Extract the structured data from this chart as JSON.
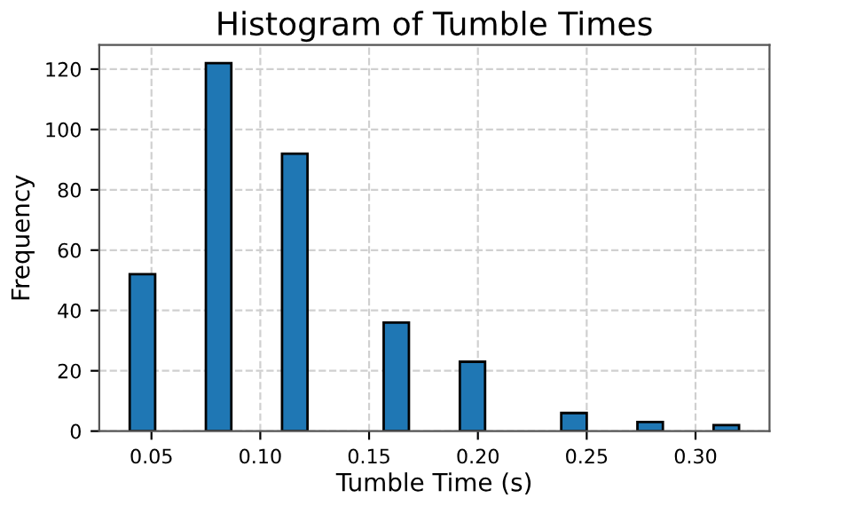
{
  "chart_data": {
    "type": "histogram",
    "title": "Histogram of Tumble Times",
    "xlabel": "Tumble Time (s)",
    "ylabel": "Frequency",
    "bins": [
      0.04,
      0.0517,
      0.0633,
      0.075,
      0.0867,
      0.0983,
      0.11,
      0.1217,
      0.1333,
      0.145,
      0.1567,
      0.1683,
      0.18,
      0.1917,
      0.2033,
      0.215,
      0.2267,
      0.2383,
      0.25,
      0.2617,
      0.2733,
      0.285,
      0.2967,
      0.3083,
      0.32
    ],
    "values": [
      52,
      0,
      0,
      122,
      0,
      0,
      92,
      0,
      0,
      0,
      36,
      0,
      0,
      23,
      0,
      0,
      0,
      6,
      0,
      0,
      3,
      0,
      0,
      2
    ],
    "color": "#1f77b4",
    "xlim": [
      0.026,
      0.334
    ],
    "xticks": [
      {
        "value": 0.05,
        "label": "0.05"
      },
      {
        "value": 0.1,
        "label": "0.10"
      },
      {
        "value": 0.15,
        "label": "0.15"
      },
      {
        "value": 0.2,
        "label": "0.20"
      },
      {
        "value": 0.25,
        "label": "0.25"
      },
      {
        "value": 0.3,
        "label": "0.30"
      }
    ],
    "ylim": [
      0,
      128
    ],
    "yticks": [
      0,
      20,
      40,
      60,
      80,
      100,
      120
    ],
    "grid": true,
    "line_style": "dashed"
  }
}
